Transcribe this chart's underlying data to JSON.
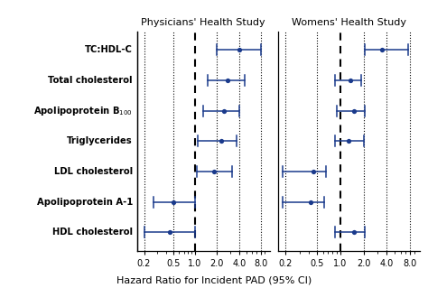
{
  "title1": "Physicians' Health Study",
  "title2": "Womens' Health Study",
  "xlabel": "Hazard Ratio for Incident PAD (95% CI)",
  "categories": [
    "TC:HDL-C",
    "Total cholesterol",
    "Apolipoprotein B$_{100}$",
    "Triglycerides",
    "LDL cholesterol",
    "Apolipoprotein A-1",
    "HDL cholesterol"
  ],
  "phs": {
    "estimates": [
      4.0,
      2.8,
      2.5,
      2.3,
      1.8,
      0.5,
      0.45
    ],
    "ci_low": [
      2.0,
      1.5,
      1.3,
      1.1,
      1.05,
      0.27,
      0.2
    ],
    "ci_high": [
      8.0,
      4.8,
      4.0,
      3.7,
      3.2,
      1.0,
      1.0
    ]
  },
  "whs": {
    "estimates": [
      3.5,
      1.35,
      1.5,
      1.3,
      0.45,
      0.42,
      1.5
    ],
    "ci_low": [
      2.1,
      0.85,
      0.9,
      0.85,
      0.18,
      0.18,
      0.85
    ],
    "ci_high": [
      7.5,
      1.85,
      2.1,
      2.0,
      0.65,
      0.62,
      2.1
    ]
  },
  "point_color": "#1a3a8c",
  "line_color": "#1a3a8c",
  "xlim_log": [
    -0.82,
    0.975
  ],
  "xticks": [
    0.2,
    0.5,
    1.0,
    2.0,
    4.0,
    8.0
  ],
  "xticklabels": [
    "0.2",
    "0.5",
    "1.0",
    "2.0",
    "4.0",
    "8.0"
  ],
  "vline_ref": 1.0,
  "vline_others": [
    0.2,
    0.5,
    2.0,
    4.0,
    8.0
  ]
}
